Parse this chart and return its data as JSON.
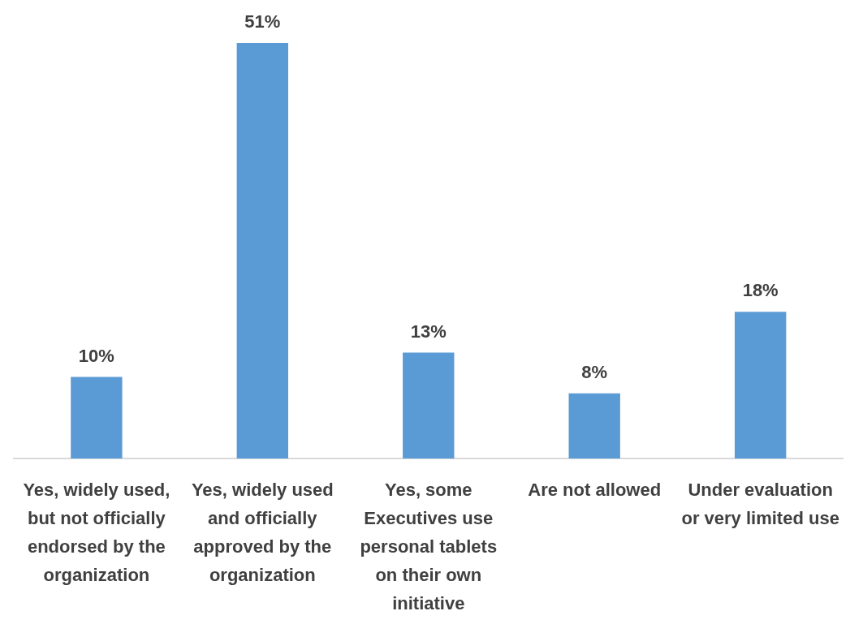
{
  "chart_data": {
    "type": "bar",
    "categories": [
      "Yes, widely used, but not officially endorsed by the organization",
      "Yes, widely used and officially approved by the organization",
      "Yes, some Executives use personal tablets on their own initiative",
      "Are not allowed",
      "Under evaluation or very limited use"
    ],
    "values": [
      10,
      51,
      13,
      8,
      18
    ],
    "value_labels": [
      "10%",
      "51%",
      "13%",
      "8%",
      "18%"
    ],
    "color": "#5b9bd5",
    "tick_labels": "x",
    "grid": false,
    "legend": false
  }
}
